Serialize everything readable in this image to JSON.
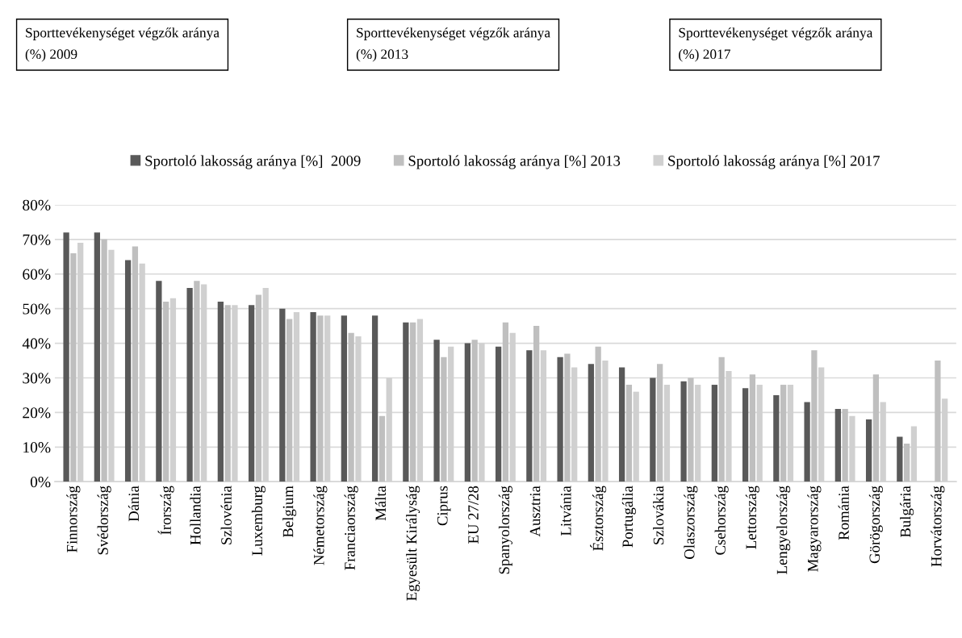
{
  "chart_data": {
    "type": "bar",
    "annotations": [
      "Sporttevékenységet végzők aránya (%) 2009",
      "Sporttevékenységet végzők aránya (%) 2013",
      "Sporttevékenységet végzők aránya (%) 2017"
    ],
    "categories": [
      "Finnország",
      "Svédország",
      "Dánia",
      "Írország",
      "Hollandia",
      "Szlovénia",
      "Luxemburg",
      "Belgium",
      "Németország",
      "Franciaország",
      "Málta",
      "Egyesült Királyság",
      "Ciprus",
      "EU 27/28",
      "Spanyolország",
      "Ausztria",
      "Litvánia",
      "Észtország",
      "Portugália",
      "Szlovákia",
      "Olaszország",
      "Csehország",
      "Lettország",
      "Lengyelország",
      "Magyarország",
      "Románia",
      "Görögország",
      "Bulgária",
      "Horvátország"
    ],
    "series": [
      {
        "name": "Sportoló lakosság aránya [%]  2009",
        "color": "#595959",
        "values": [
          72,
          72,
          64,
          58,
          56,
          52,
          51,
          50,
          49,
          48,
          48,
          46,
          41,
          40,
          39,
          38,
          36,
          34,
          33,
          30,
          29,
          28,
          27,
          25,
          23,
          21,
          18,
          13,
          null
        ]
      },
      {
        "name": "Sportoló lakosság aránya [%] 2013",
        "color": "#bfbfbf",
        "values": [
          66,
          70,
          68,
          52,
          58,
          51,
          54,
          47,
          48,
          43,
          19,
          46,
          36,
          41,
          46,
          45,
          37,
          39,
          28,
          34,
          30,
          36,
          31,
          28,
          38,
          21,
          31,
          11,
          35
        ]
      },
      {
        "name": "Sportoló lakosság aránya [%] 2017",
        "color": "#d0d0d0",
        "values": [
          69,
          67,
          63,
          53,
          57,
          51,
          56,
          49,
          48,
          42,
          30,
          47,
          39,
          40,
          43,
          38,
          33,
          35,
          26,
          28,
          28,
          32,
          28,
          28,
          33,
          19,
          23,
          16,
          24
        ]
      }
    ],
    "ylim": [
      0,
      80
    ],
    "yticks": [
      {
        "value": 0,
        "label": "0%"
      },
      {
        "value": 10,
        "label": "10%"
      },
      {
        "value": 20,
        "label": "20%"
      },
      {
        "value": 30,
        "label": "30%"
      },
      {
        "value": 40,
        "label": "40%"
      },
      {
        "value": 50,
        "label": "50%"
      },
      {
        "value": 60,
        "label": "60%"
      },
      {
        "value": 70,
        "label": "70%"
      },
      {
        "value": 80,
        "label": "80%"
      }
    ],
    "grid": "y",
    "legend": "top"
  }
}
